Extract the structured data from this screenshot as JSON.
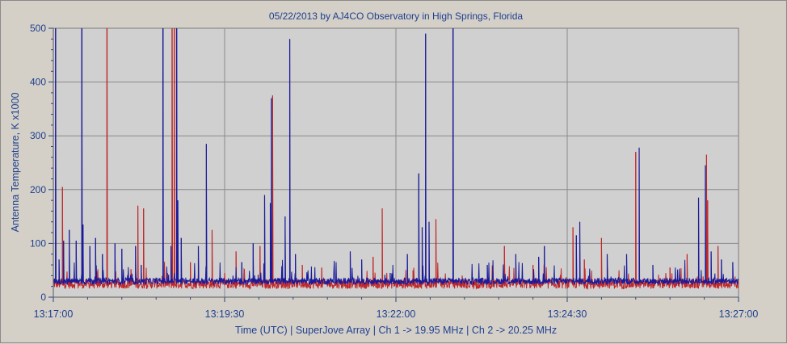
{
  "chart_data": {
    "type": "line",
    "title": "05/22/2013  by  AJ4CO Observatory  in  High Springs, Florida",
    "xlabel": "Time (UTC)  |  SuperJove Array  |  Ch 1 -> 19.95 MHz  |  Ch 2 -> 20.25 MHz",
    "ylabel": "Antenna Temperature, K x1000",
    "xlim": [
      "13:17:00",
      "13:27:00"
    ],
    "x_ticks": [
      "13:17:00",
      "13:19:30",
      "13:22:00",
      "13:24:30",
      "13:27:00"
    ],
    "ylim": [
      0,
      500
    ],
    "y_ticks": [
      0,
      100,
      200,
      300,
      400,
      500
    ],
    "grid": true,
    "baseline": {
      "Ch 1": 22,
      "Ch 2": 28
    },
    "series": [
      {
        "color": "#c0282a",
        "spikes": [
          [
            "13:17:08",
            205
          ],
          [
            "13:17:38",
            48
          ],
          [
            "13:17:47",
            500
          ],
          [
            "13:18:08",
            52
          ],
          [
            "13:18:14",
            170
          ],
          [
            "13:18:19",
            165
          ],
          [
            "13:18:40",
            45
          ],
          [
            "13:18:44",
            500
          ],
          [
            "13:18:46",
            500
          ],
          [
            "13:19:00",
            65
          ],
          [
            "13:19:14",
            55
          ],
          [
            "13:19:19",
            125
          ],
          [
            "13:19:30",
            45
          ],
          [
            "13:19:40",
            85
          ],
          [
            "13:20:01",
            95
          ],
          [
            "13:20:12",
            375
          ],
          [
            "13:20:38",
            60
          ],
          [
            "13:20:55",
            55
          ],
          [
            "13:21:40",
            75
          ],
          [
            "13:21:48",
            165
          ],
          [
            "13:22:15",
            50
          ],
          [
            "13:22:35",
            145
          ],
          [
            "13:22:58",
            40
          ],
          [
            "13:23:35",
            95
          ],
          [
            "13:24:00",
            60
          ],
          [
            "13:24:35",
            130
          ],
          [
            "13:24:45",
            70
          ],
          [
            "13:25:00",
            110
          ],
          [
            "13:25:30",
            270
          ],
          [
            "13:26:00",
            55
          ],
          [
            "13:26:15",
            80
          ],
          [
            "13:26:32",
            265
          ],
          [
            "13:26:33",
            180
          ],
          [
            "13:26:42",
            95
          ]
        ]
      },
      {
        "color": "#1a1a9a",
        "spikes": [
          [
            "13:17:02",
            500
          ],
          [
            "13:17:05",
            70
          ],
          [
            "13:17:09",
            105
          ],
          [
            "13:17:14",
            125
          ],
          [
            "13:17:20",
            105
          ],
          [
            "13:17:25",
            500
          ],
          [
            "13:17:26",
            135
          ],
          [
            "13:17:32",
            95
          ],
          [
            "13:17:37",
            110
          ],
          [
            "13:17:43",
            80
          ],
          [
            "13:17:54",
            100
          ],
          [
            "13:18:00",
            90
          ],
          [
            "13:18:12",
            95
          ],
          [
            "13:18:17",
            60
          ],
          [
            "13:18:36",
            500
          ],
          [
            "13:18:43",
            95
          ],
          [
            "13:18:48",
            500
          ],
          [
            "13:18:49",
            180
          ],
          [
            "13:18:52",
            110
          ],
          [
            "13:19:07",
            95
          ],
          [
            "13:19:14",
            285
          ],
          [
            "13:19:45",
            65
          ],
          [
            "13:19:55",
            100
          ],
          [
            "13:20:05",
            190
          ],
          [
            "13:20:10",
            175
          ],
          [
            "13:20:11",
            370
          ],
          [
            "13:20:23",
            150
          ],
          [
            "13:20:27",
            480
          ],
          [
            "13:20:32",
            80
          ],
          [
            "13:21:20",
            85
          ],
          [
            "13:21:30",
            70
          ],
          [
            "13:21:55",
            45
          ],
          [
            "13:22:10",
            80
          ],
          [
            "13:22:20",
            230
          ],
          [
            "13:22:23",
            130
          ],
          [
            "13:22:26",
            490
          ],
          [
            "13:22:29",
            140
          ],
          [
            "13:22:50",
            500
          ],
          [
            "13:23:20",
            60
          ],
          [
            "13:23:45",
            80
          ],
          [
            "13:24:05",
            75
          ],
          [
            "13:24:10",
            95
          ],
          [
            "13:24:38",
            115
          ],
          [
            "13:24:41",
            140
          ],
          [
            "13:25:05",
            80
          ],
          [
            "13:25:22",
            80
          ],
          [
            "13:25:33",
            278
          ],
          [
            "13:25:45",
            60
          ],
          [
            "13:26:25",
            185
          ],
          [
            "13:26:31",
            245
          ],
          [
            "13:26:36",
            85
          ],
          [
            "13:26:45",
            70
          ],
          [
            "13:26:55",
            65
          ]
        ]
      }
    ]
  }
}
